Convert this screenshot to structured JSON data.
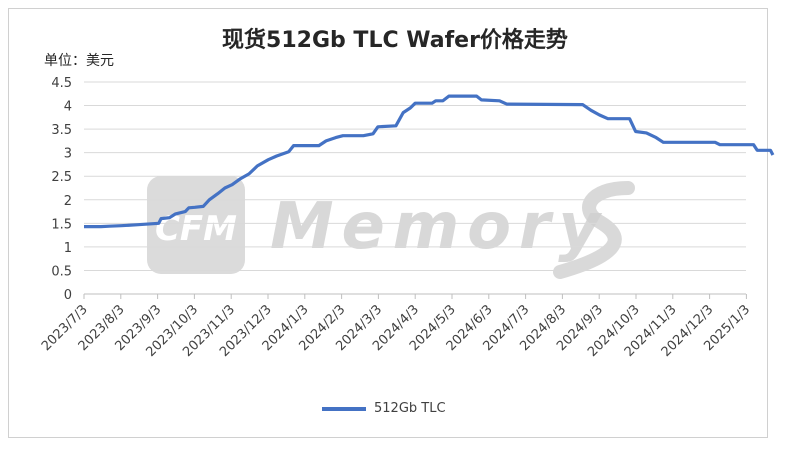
{
  "chart_data": {
    "type": "line",
    "title": "现货512Gb TLC Wafer价格走势",
    "unit_label": "单位：美元",
    "ylim": [
      0,
      4.5
    ],
    "yticks": [
      0,
      0.5,
      1,
      1.5,
      2,
      2.5,
      3,
      3.5,
      4,
      4.5
    ],
    "ytick_labels": [
      "0",
      "0.5",
      "1",
      "1.5",
      "2",
      "2.5",
      "3",
      "3.5",
      "4",
      "4.5"
    ],
    "xtick_labels": [
      "2023/7/3",
      "2023/8/3",
      "2023/9/3",
      "2023/10/3",
      "2023/11/3",
      "2023/12/3",
      "2024/1/3",
      "2024/2/3",
      "2024/3/3",
      "2024/4/3",
      "2024/5/3",
      "2024/6/3",
      "2024/7/3",
      "2024/8/3",
      "2024/9/3",
      "2024/10/3",
      "2024/11/3",
      "2024/12/3",
      "2025/1/3"
    ],
    "grid": true,
    "legend": "bottom",
    "watermark": "CFM MemoryS",
    "colors": {
      "series": "#4472c4",
      "grid": "#d9d9d9",
      "axis": "#bfbfbf",
      "watermark": "#cfcfcf"
    },
    "series": [
      {
        "name": "512Gb TLC",
        "points": [
          [
            "2023/7/3",
            1.43
          ],
          [
            "2023/7/17",
            1.43
          ],
          [
            "2023/7/24",
            1.44
          ],
          [
            "2023/8/3",
            1.45
          ],
          [
            "2023/8/17",
            1.47
          ],
          [
            "2023/9/3",
            1.5
          ],
          [
            "2023/9/5",
            1.6
          ],
          [
            "2023/9/12",
            1.62
          ],
          [
            "2023/9/17",
            1.7
          ],
          [
            "2023/9/25",
            1.75
          ],
          [
            "2023/9/28",
            1.83
          ],
          [
            "2023/10/3",
            1.84
          ],
          [
            "2023/10/10",
            1.86
          ],
          [
            "2023/10/15",
            2.0
          ],
          [
            "2023/10/22",
            2.13
          ],
          [
            "2023/10/28",
            2.25
          ],
          [
            "2023/11/3",
            2.32
          ],
          [
            "2023/11/10",
            2.45
          ],
          [
            "2023/11/17",
            2.55
          ],
          [
            "2023/11/24",
            2.72
          ],
          [
            "2023/12/3",
            2.85
          ],
          [
            "2023/12/10",
            2.93
          ],
          [
            "2023/12/20",
            3.02
          ],
          [
            "2023/12/24",
            3.15
          ],
          [
            "2024/1/14",
            3.15
          ],
          [
            "2024/1/20",
            3.25
          ],
          [
            "2024/1/28",
            3.32
          ],
          [
            "2024/2/3",
            3.36
          ],
          [
            "2024/2/20",
            3.36
          ],
          [
            "2024/2/28",
            3.4
          ],
          [
            "2024/3/3",
            3.55
          ],
          [
            "2024/3/18",
            3.57
          ],
          [
            "2024/3/24",
            3.85
          ],
          [
            "2024/3/30",
            3.95
          ],
          [
            "2024/4/3",
            4.05
          ],
          [
            "2024/4/17",
            4.05
          ],
          [
            "2024/4/20",
            4.1
          ],
          [
            "2024/4/26",
            4.1
          ],
          [
            "2024/5/1",
            4.2
          ],
          [
            "2024/5/24",
            4.2
          ],
          [
            "2024/5/28",
            4.12
          ],
          [
            "2024/6/12",
            4.1
          ],
          [
            "2024/6/18",
            4.03
          ],
          [
            "2024/8/20",
            4.02
          ],
          [
            "2024/8/27",
            3.9
          ],
          [
            "2024/9/3",
            3.8
          ],
          [
            "2024/9/10",
            3.72
          ],
          [
            "2024/9/28",
            3.72
          ],
          [
            "2024/10/3",
            3.45
          ],
          [
            "2024/10/12",
            3.42
          ],
          [
            "2024/10/20",
            3.32
          ],
          [
            "2024/10/26",
            3.22
          ],
          [
            "2024/12/8",
            3.22
          ],
          [
            "2024/12/12",
            3.17
          ],
          [
            "2025/1/9",
            3.17
          ],
          [
            "2025/1/12",
            3.05
          ],
          [
            "2025/1/23",
            3.05
          ],
          [
            "2025/1/25",
            2.95
          ]
        ]
      }
    ]
  }
}
